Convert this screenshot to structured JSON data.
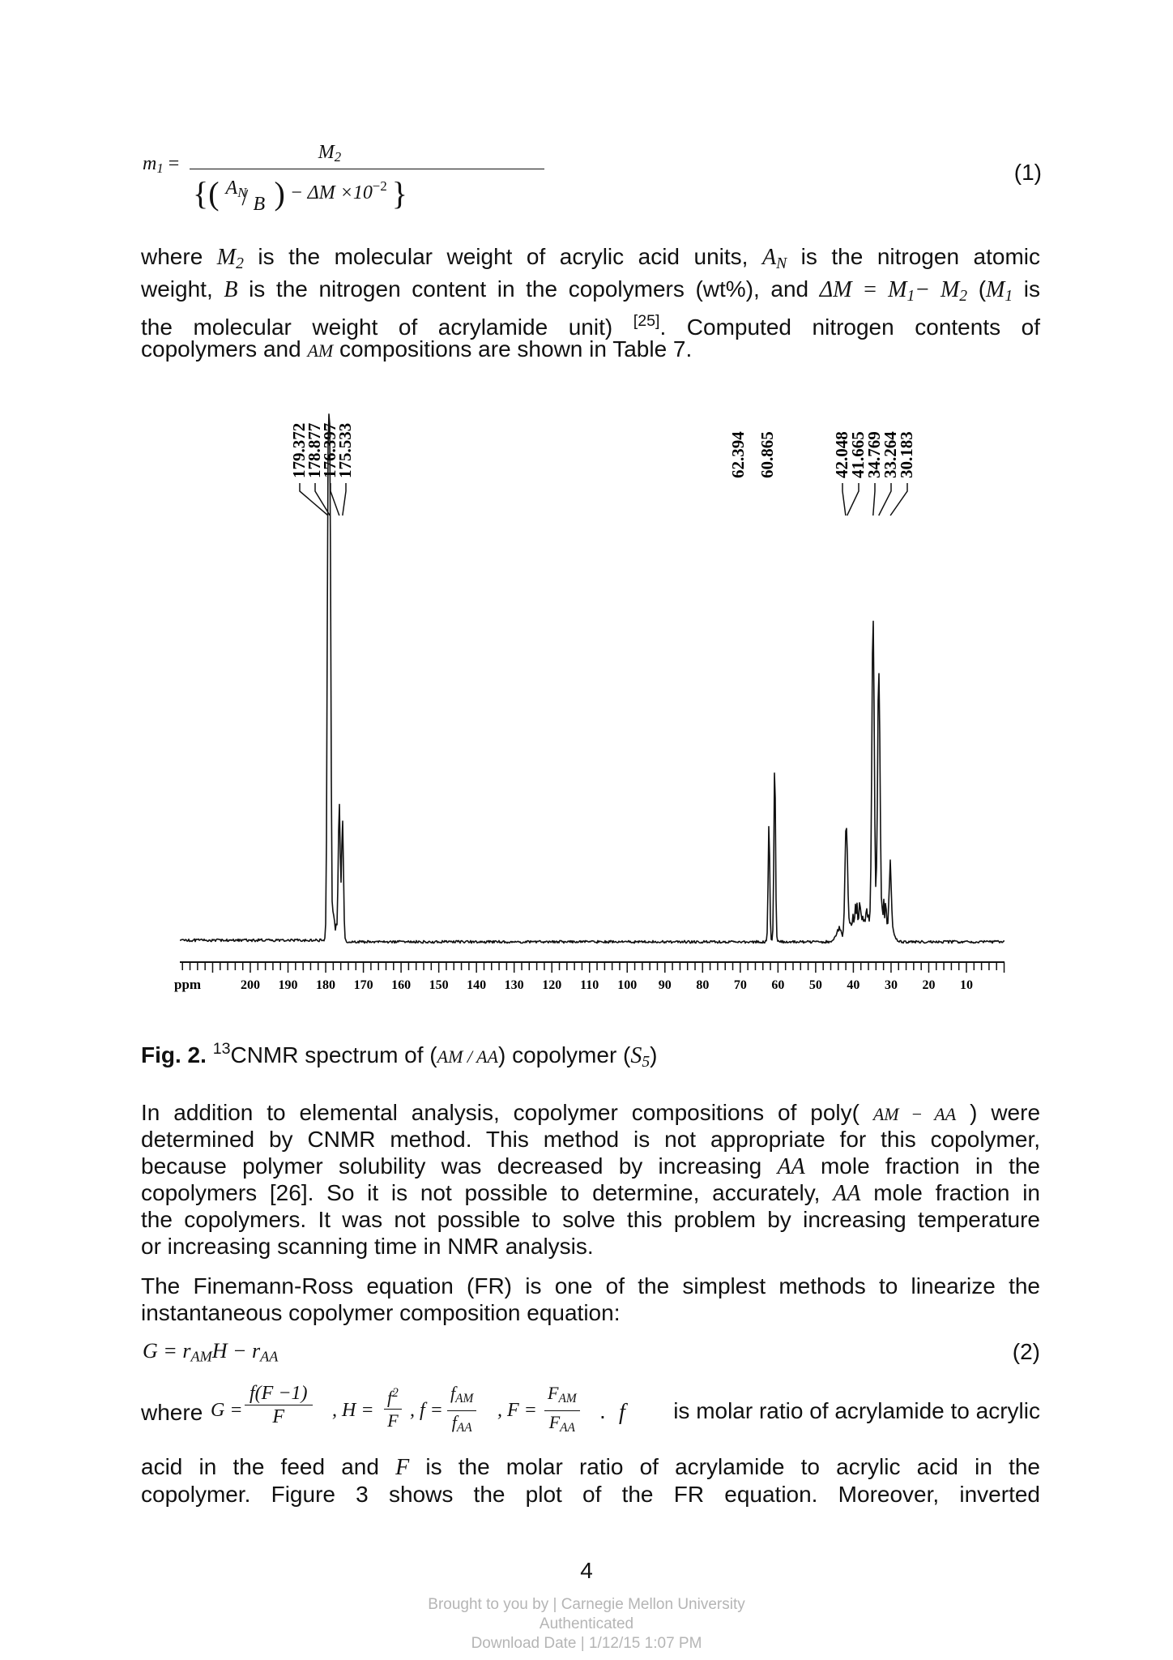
{
  "eq1": {
    "lhs": "m",
    "lhs_sub": "1",
    "num": "M",
    "num_sub": "2",
    "den_a": "A",
    "den_a_sub": "N",
    "den_b": "B",
    "den_rest": "− ΔM ×10",
    "den_exp": "−2",
    "number": "(1)"
  },
  "p1": {
    "l1": [
      "where",
      "M",
      "2",
      "is the molecular weight of acrylic acid units,",
      "A",
      "N",
      "is the nitrogen atomic"
    ],
    "l2": [
      "weight,",
      "B",
      "is the nitrogen content in the copolymers (wt%), and",
      "ΔM = M",
      "1",
      "− M",
      "2",
      "(",
      "M",
      "1",
      "is"
    ],
    "l3": [
      "the molecular weight of acrylamide unit)",
      "[25]",
      ". Computed nitrogen contents of"
    ],
    "l4": [
      "copolymers and",
      "AM",
      "compositions are shown in Table 7."
    ]
  },
  "spectrum": {
    "peak_labels_group1": [
      "179.372",
      "178.877",
      "176.397",
      "175.533"
    ],
    "peak_labels_group2": [
      "62.394",
      "60.865"
    ],
    "peak_labels_group3": [
      "42.048",
      "41.665",
      "34.769",
      "33.264",
      "30.183"
    ],
    "axis_unit": "ppm",
    "ticks": [
      "200",
      "190",
      "180",
      "170",
      "160",
      "150",
      "140",
      "130",
      "120",
      "110",
      "100",
      "90",
      "80",
      "70",
      "60",
      "50",
      "40",
      "30",
      "20",
      "10"
    ]
  },
  "caption": {
    "label": "Fig. 2.",
    "sup": "13",
    "text1": "CNMR spectrum of (",
    "sym1": "AM / AA",
    "text2": ") copolymer (",
    "sym2": "S",
    "sym2_sub": "5",
    "text3": ")"
  },
  "p2": {
    "l1": [
      "In addition to elemental analysis, copolymer compositions of poly(",
      "AM − AA",
      ") were"
    ],
    "l2": "determined by CNMR method. This method is not appropriate for this copolymer,",
    "l3": [
      "because polymer solubility was decreased by increasing",
      "AA",
      "mole fraction in the"
    ],
    "l4": [
      "copolymers [26]. So it is not possible to determine, accurately,",
      "AA",
      "mole fraction in"
    ],
    "l5": "the copolymers. It was not possible to solve this problem by increasing temperature",
    "l6": "or increasing scanning time in NMR analysis."
  },
  "p3": {
    "l1": "The Finemann-Ross equation (FR) is one of the simplest methods to linearize the",
    "l2": "instantaneous copolymer composition equation:"
  },
  "eq2": {
    "a": "G = r",
    "a_sub": "AM",
    "b": "H − r",
    "b_sub": "AA",
    "number": "(2)"
  },
  "p4": {
    "where": "where",
    "g_lhs": "G =",
    "g_num": "f(F −1)",
    "g_den": "F",
    "h_lhs": ", H =",
    "h_num": "f",
    "h_num_sup": "2",
    "h_den": "F",
    "f_lhs": ", f =",
    "f_num": "f",
    "f_num_sub": "AM",
    "f_den": "f",
    "f_den_sub": "AA",
    "F_lhs": ",  F =",
    "F_num": "F",
    "F_num_sub": "AM",
    "F_den": "F",
    "F_den_sub": "AA",
    "tail_sym": "f",
    "tail": "is molar ratio of acrylamide to acrylic",
    "l2a": "acid in the feed and",
    "l2sym": "F",
    "l2b": "is the molar ratio of acrylamide to acrylic acid in the",
    "l3": "copolymer. Figure 3 shows the plot of the FR equation. Moreover, inverted"
  },
  "page_number": "4",
  "footer": {
    "l1": "Brought to you by | Carnegie Mellon University",
    "l2": "Authenticated",
    "l3": "Download Date | 1/12/15 1:07 PM"
  }
}
